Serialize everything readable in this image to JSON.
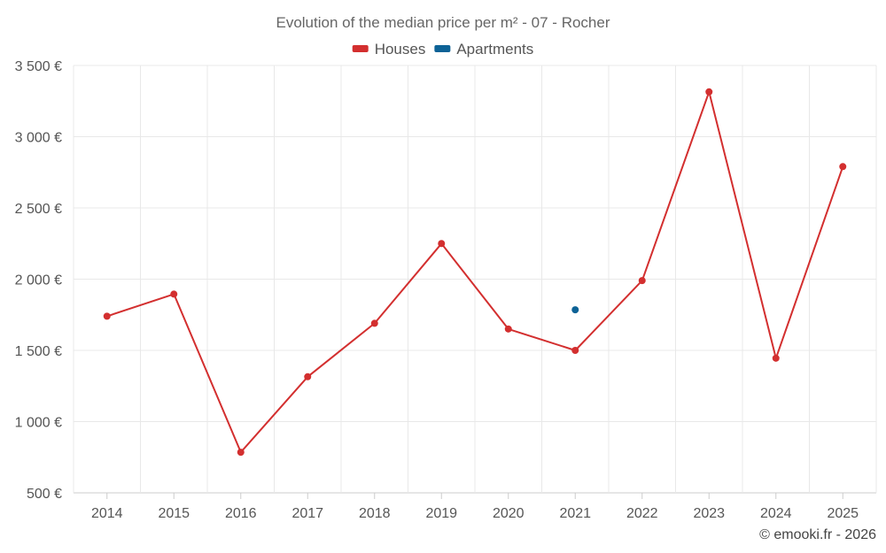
{
  "chart_data": {
    "type": "line",
    "title": "Evolution of the median price per m² - 07 - Rocher",
    "categories": [
      "2014",
      "2015",
      "2016",
      "2017",
      "2018",
      "2019",
      "2020",
      "2021",
      "2022",
      "2023",
      "2024",
      "2025"
    ],
    "series": [
      {
        "name": "Houses",
        "color": "#d32f2f",
        "values": [
          1740,
          1895,
          785,
          1315,
          1690,
          2250,
          1650,
          1500,
          1990,
          3315,
          1445,
          2790
        ]
      },
      {
        "name": "Apartments",
        "color": "#0d6296",
        "values": [
          null,
          null,
          null,
          null,
          null,
          null,
          null,
          1785,
          null,
          null,
          null,
          null
        ]
      }
    ],
    "ylim": [
      500,
      3500
    ],
    "yticks": [
      500,
      1000,
      1500,
      2000,
      2500,
      3000,
      3500
    ],
    "ytick_labels": [
      "500 €",
      "1 000 €",
      "1 500 €",
      "2 000 €",
      "2 500 €",
      "3 000 €",
      "3 500 €"
    ],
    "grid": true,
    "legend_position": "top-center",
    "xlabel": "",
    "ylabel": ""
  },
  "credit": "© emooki.fr - 2026"
}
